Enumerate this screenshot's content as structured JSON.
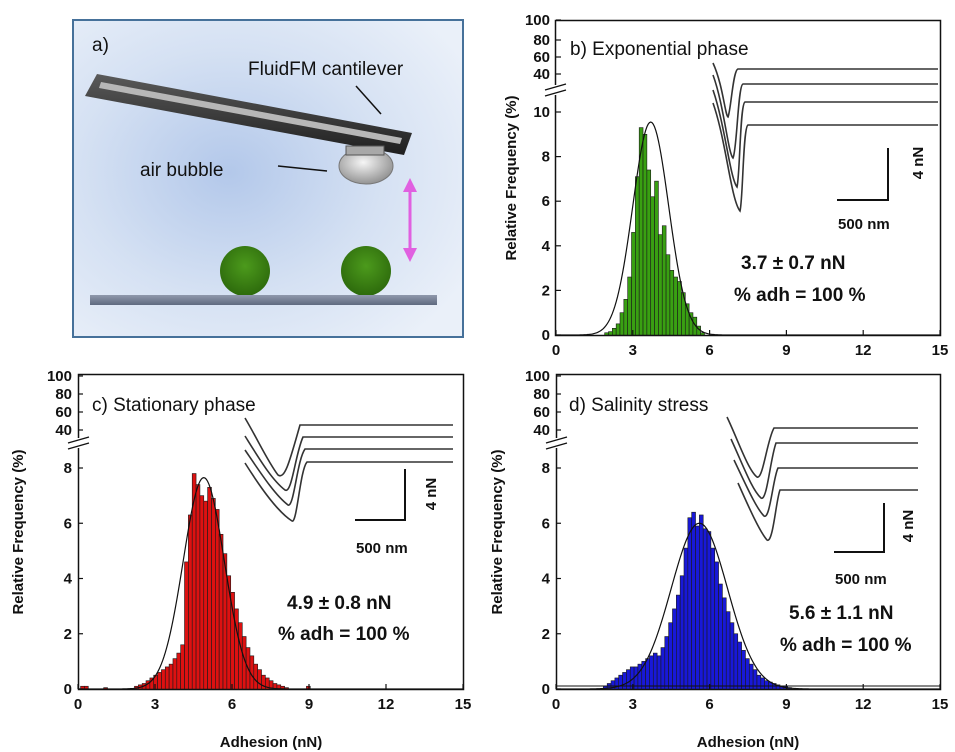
{
  "colors": {
    "panel_b_bars": "#39a012",
    "panel_c_bars": "#dd1111",
    "panel_d_bars": "#1818d8",
    "magenta_arrow": "#e060e0",
    "illustration_border": "#46719a",
    "cell_green": "#3a8a12"
  },
  "illustration": {
    "panel_label": "a)",
    "cantilever_label": "FluidFM cantilever",
    "bubble_label": "air bubble"
  },
  "chart_data": [
    {
      "type": "bar",
      "panel": "b",
      "title": "b) Exponential phase",
      "ylabel": "Relative Frequency (%)",
      "xlabel": "",
      "xlim": [
        0,
        15
      ],
      "ylim": [
        0,
        11
      ],
      "broken_axis": true,
      "y_upper_ticks": [
        "100",
        "80",
        "60",
        "40"
      ],
      "y_ticks": [
        "0",
        "2",
        "4",
        "6",
        "8",
        "10"
      ],
      "x_ticks": [
        "0",
        "3",
        "6",
        "9",
        "12",
        "15"
      ],
      "bin_width": 0.15,
      "bins": [
        [
          1.9,
          0.1
        ],
        [
          2.05,
          0.15
        ],
        [
          2.2,
          0.3
        ],
        [
          2.35,
          0.5
        ],
        [
          2.5,
          1.0
        ],
        [
          2.65,
          1.6
        ],
        [
          2.8,
          2.6
        ],
        [
          2.95,
          4.6
        ],
        [
          3.1,
          7.1
        ],
        [
          3.25,
          9.3
        ],
        [
          3.4,
          9.0
        ],
        [
          3.55,
          7.4
        ],
        [
          3.7,
          6.2
        ],
        [
          3.85,
          6.9
        ],
        [
          4.0,
          4.5
        ],
        [
          4.15,
          4.9
        ],
        [
          4.3,
          3.6
        ],
        [
          4.45,
          2.9
        ],
        [
          4.6,
          2.6
        ],
        [
          4.75,
          2.4
        ],
        [
          4.9,
          1.9
        ],
        [
          5.05,
          1.4
        ],
        [
          5.2,
          1.0
        ],
        [
          5.35,
          0.8
        ],
        [
          5.5,
          0.4
        ],
        [
          5.65,
          0.1
        ]
      ],
      "fit": {
        "model": "gaussian",
        "mean": 3.7,
        "sd": 0.7,
        "peak": 9.55
      },
      "annotation_value": "3.7 ± 0.7 nN",
      "annotation_adh": "% adh = 100 %",
      "scale_force": "4 nN",
      "scale_distance": "500 nm"
    },
    {
      "type": "bar",
      "panel": "c",
      "title": "c) Stationary phase",
      "ylabel": "Relative Frequency (%)",
      "xlabel": "Adhesion (nN)",
      "xlim": [
        0,
        15
      ],
      "ylim": [
        0,
        9
      ],
      "broken_axis": true,
      "y_upper_ticks": [
        "100",
        "80",
        "60",
        "40"
      ],
      "y_ticks": [
        "0",
        "2",
        "4",
        "6",
        "8"
      ],
      "x_ticks": [
        "0",
        "3",
        "6",
        "9",
        "12",
        "15"
      ],
      "bin_width": 0.15,
      "bins": [
        [
          0.1,
          0.1
        ],
        [
          0.25,
          0.1
        ],
        [
          1.0,
          0.05
        ],
        [
          2.2,
          0.1
        ],
        [
          2.35,
          0.15
        ],
        [
          2.5,
          0.2
        ],
        [
          2.65,
          0.3
        ],
        [
          2.8,
          0.4
        ],
        [
          2.95,
          0.5
        ],
        [
          3.1,
          0.6
        ],
        [
          3.25,
          0.7
        ],
        [
          3.4,
          0.8
        ],
        [
          3.55,
          0.9
        ],
        [
          3.7,
          1.1
        ],
        [
          3.85,
          1.3
        ],
        [
          4.0,
          1.6
        ],
        [
          4.15,
          4.6
        ],
        [
          4.3,
          6.3
        ],
        [
          4.45,
          7.8
        ],
        [
          4.6,
          7.4
        ],
        [
          4.75,
          7.0
        ],
        [
          4.9,
          6.8
        ],
        [
          5.05,
          7.3
        ],
        [
          5.2,
          6.9
        ],
        [
          5.35,
          6.5
        ],
        [
          5.5,
          5.6
        ],
        [
          5.65,
          4.9
        ],
        [
          5.8,
          4.1
        ],
        [
          5.95,
          3.5
        ],
        [
          6.1,
          2.9
        ],
        [
          6.25,
          2.4
        ],
        [
          6.4,
          1.9
        ],
        [
          6.55,
          1.5
        ],
        [
          6.7,
          1.2
        ],
        [
          6.85,
          0.9
        ],
        [
          7.0,
          0.7
        ],
        [
          7.15,
          0.5
        ],
        [
          7.3,
          0.4
        ],
        [
          7.45,
          0.3
        ],
        [
          7.6,
          0.2
        ],
        [
          7.75,
          0.15
        ],
        [
          7.9,
          0.1
        ],
        [
          8.05,
          0.05
        ],
        [
          8.9,
          0.1
        ]
      ],
      "fit": {
        "model": "gaussian",
        "mean": 4.9,
        "sd": 0.8,
        "peak": 7.65
      },
      "annotation_value": "4.9 ± 0.8 nN",
      "annotation_adh": "% adh = 100 %",
      "scale_force": "4 nN",
      "scale_distance": "500 nm"
    },
    {
      "type": "bar",
      "panel": "d",
      "title": "d) Salinity stress",
      "ylabel": "Relative Frequency (%)",
      "xlabel": "Adhesion (nN)",
      "xlim": [
        0,
        15
      ],
      "ylim": [
        0,
        9
      ],
      "broken_axis": true,
      "y_upper_ticks": [
        "100",
        "80",
        "60",
        "40"
      ],
      "y_ticks": [
        "0",
        "2",
        "4",
        "6",
        "8"
      ],
      "x_ticks": [
        "0",
        "3",
        "6",
        "9",
        "12",
        "15"
      ],
      "bin_width": 0.15,
      "bins": [
        [
          1.85,
          0.1
        ],
        [
          2.0,
          0.2
        ],
        [
          2.15,
          0.3
        ],
        [
          2.3,
          0.4
        ],
        [
          2.45,
          0.5
        ],
        [
          2.6,
          0.6
        ],
        [
          2.75,
          0.7
        ],
        [
          2.9,
          0.8
        ],
        [
          3.05,
          0.8
        ],
        [
          3.2,
          0.9
        ],
        [
          3.35,
          1.0
        ],
        [
          3.5,
          1.1
        ],
        [
          3.65,
          1.2
        ],
        [
          3.8,
          1.3
        ],
        [
          3.95,
          1.2
        ],
        [
          4.1,
          1.5
        ],
        [
          4.25,
          1.9
        ],
        [
          4.4,
          2.4
        ],
        [
          4.55,
          2.9
        ],
        [
          4.7,
          3.4
        ],
        [
          4.85,
          4.1
        ],
        [
          5.0,
          5.1
        ],
        [
          5.15,
          6.2
        ],
        [
          5.3,
          6.4
        ],
        [
          5.45,
          5.9
        ],
        [
          5.6,
          6.3
        ],
        [
          5.75,
          5.8
        ],
        [
          5.9,
          5.7
        ],
        [
          6.05,
          5.1
        ],
        [
          6.2,
          4.6
        ],
        [
          6.35,
          3.8
        ],
        [
          6.5,
          3.3
        ],
        [
          6.65,
          2.8
        ],
        [
          6.8,
          2.4
        ],
        [
          6.95,
          2.0
        ],
        [
          7.1,
          1.7
        ],
        [
          7.25,
          1.4
        ],
        [
          7.4,
          1.1
        ],
        [
          7.55,
          0.9
        ],
        [
          7.7,
          0.7
        ],
        [
          7.85,
          0.5
        ],
        [
          8.0,
          0.4
        ],
        [
          8.15,
          0.3
        ],
        [
          8.3,
          0.25
        ],
        [
          8.45,
          0.2
        ],
        [
          8.6,
          0.15
        ],
        [
          8.75,
          0.1
        ],
        [
          8.9,
          0.1
        ],
        [
          9.05,
          0.05
        ]
      ],
      "fit": {
        "model": "gaussian",
        "mean": 5.6,
        "sd": 1.1,
        "peak": 6.0
      },
      "annotation_value": "5.6 ± 1.1 nN",
      "annotation_adh": "% adh = 100 %",
      "scale_force": "4 nN",
      "scale_distance": "500 nm"
    }
  ]
}
